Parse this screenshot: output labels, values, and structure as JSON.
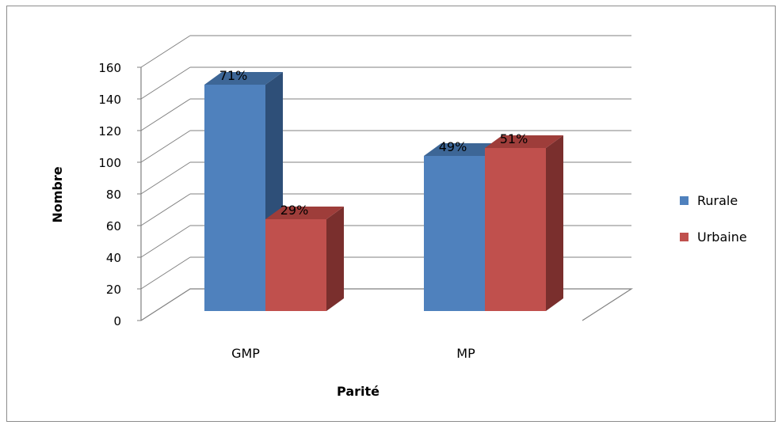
{
  "chart_data": {
    "type": "bar",
    "categories": [
      "GMP",
      "MP"
    ],
    "series": [
      {
        "name": "Rurale",
        "values": [
          143,
          98
        ],
        "labels": [
          "71%",
          "49%"
        ],
        "color": "#4f81bd",
        "side_color": "#2e4f78",
        "top_color": "#3d6696"
      },
      {
        "name": "Urbaine",
        "values": [
          58,
          103
        ],
        "labels": [
          "29%",
          "51%"
        ],
        "color": "#c0504d",
        "side_color": "#7a2f2d",
        "top_color": "#9e3d3a"
      }
    ],
    "yticks": [
      0,
      20,
      40,
      60,
      80,
      100,
      120,
      140,
      160
    ],
    "ylim": [
      0,
      160
    ],
    "xlabel": "Parité",
    "ylabel": "Nombre",
    "legend_position": "right",
    "grid": true
  }
}
